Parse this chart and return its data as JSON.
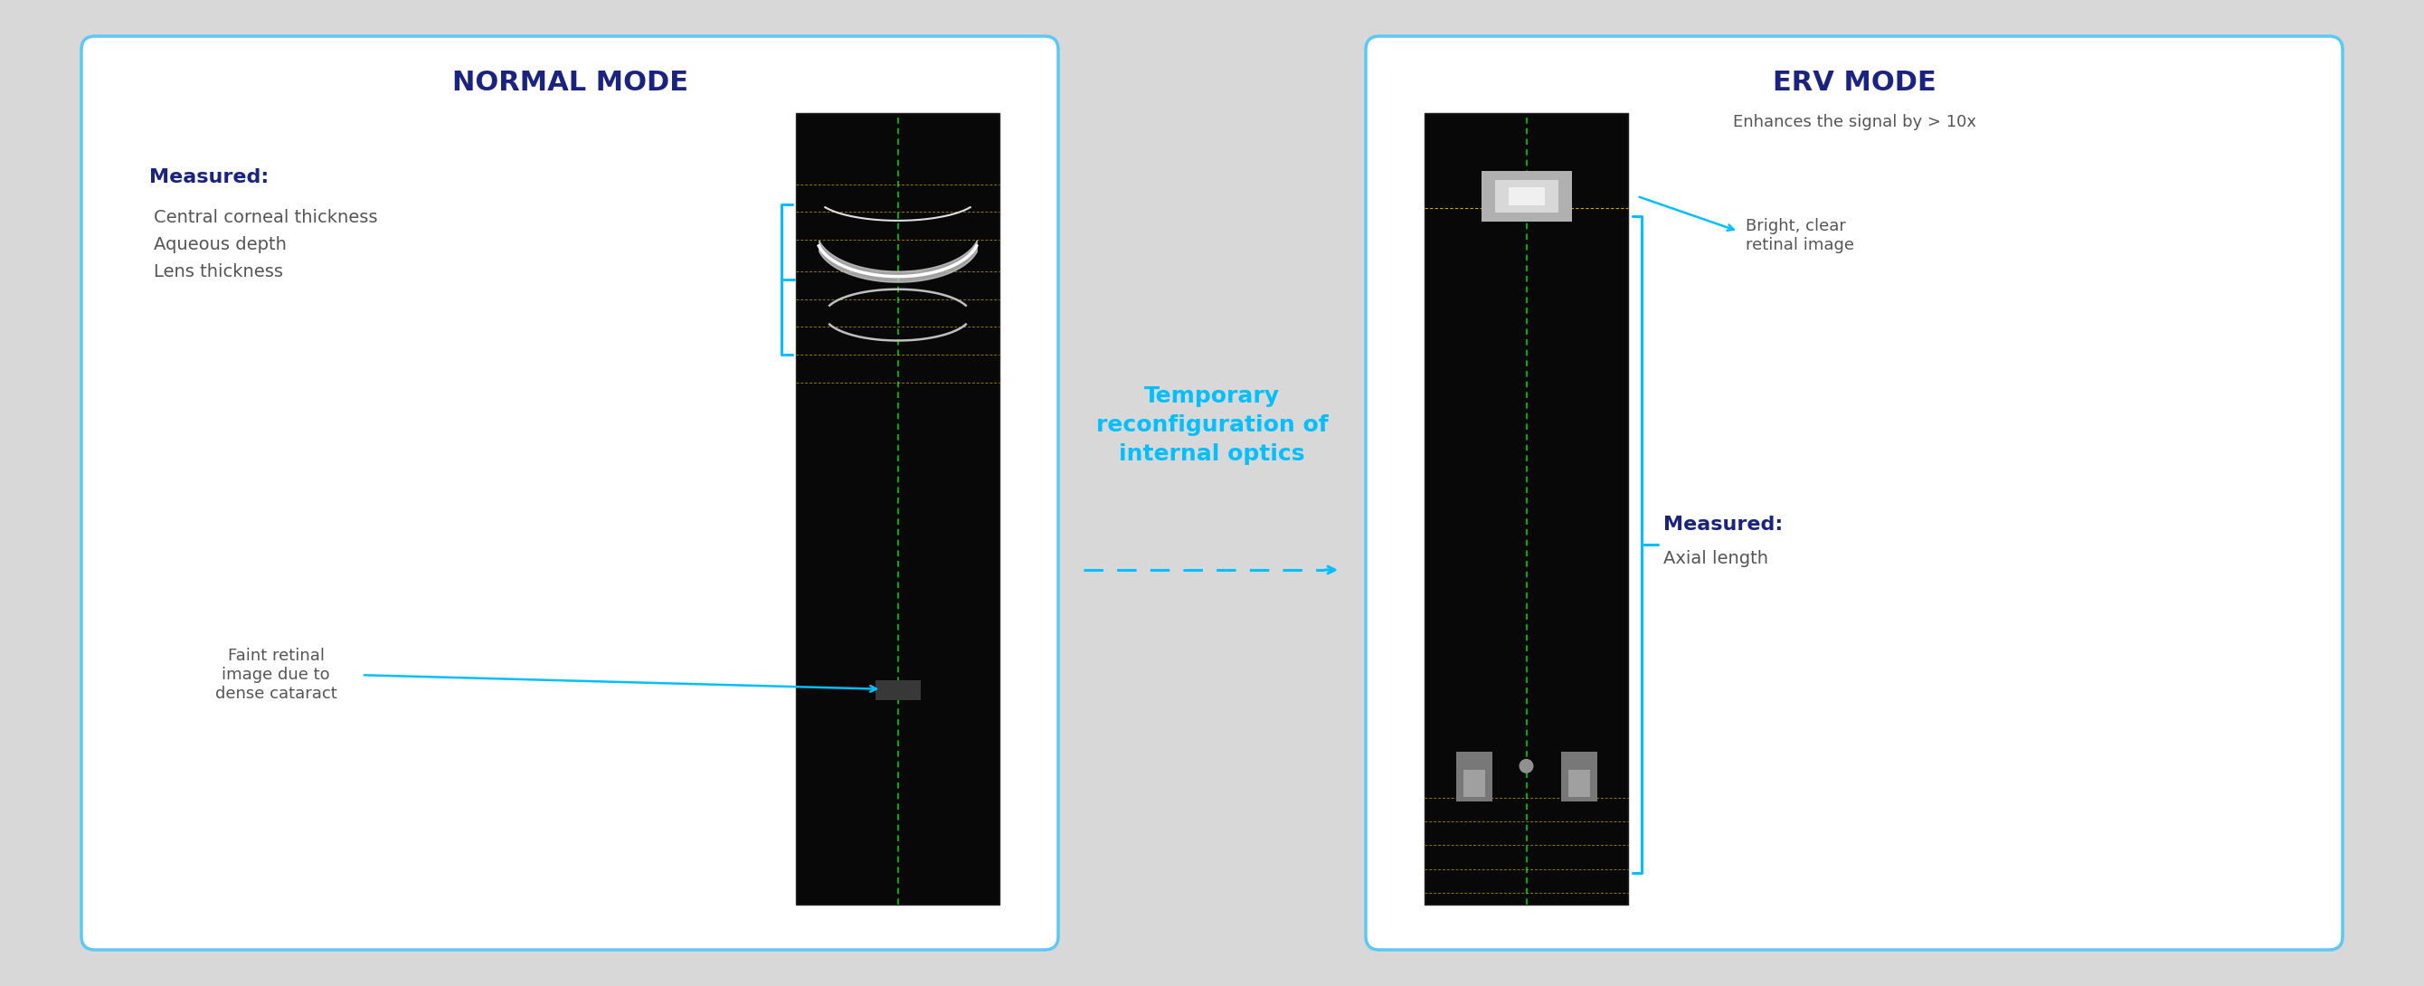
{
  "bg_color": "#ffffff",
  "outer_bg": "#d8d8d8",
  "panel_border_color": "#5bc8f5",
  "panel_border_lw": 2.5,
  "left_panel": {
    "title": "NORMAL MODE",
    "title_color": "#1a237e",
    "title_fontsize": 22,
    "measured_label": "Measured:",
    "measured_color": "#1a237e",
    "measured_fontsize": 16,
    "measured_items": [
      "Central corneal thickness",
      "Aqueous depth",
      "Lens thickness"
    ],
    "measured_items_color": "#555555",
    "measured_items_fontsize": 14,
    "faint_label": "Faint retinal\nimage due to\ndense cataract",
    "faint_label_color": "#555555",
    "faint_label_fontsize": 13
  },
  "right_panel": {
    "title": "ERV MODE",
    "title_color": "#1a237e",
    "title_fontsize": 22,
    "subtitle": "Enhances the signal by > 10x",
    "subtitle_color": "#555555",
    "subtitle_fontsize": 13,
    "bright_label": "Bright, clear\nretinal image",
    "bright_label_color": "#555555",
    "bright_label_fontsize": 13,
    "measured_label": "Measured:",
    "measured_color": "#1a237e",
    "measured_fontsize": 16,
    "measured_items": [
      "Axial length"
    ],
    "measured_items_color": "#555555",
    "measured_items_fontsize": 14
  },
  "middle": {
    "arrow_text": "Temporary\nreconfiguration of\ninternal optics",
    "arrow_text_color": "#00bfff",
    "arrow_text_fontsize": 18,
    "arrow_color": "#00bfff",
    "arrow_lw": 2.0
  },
  "annotation_arrow_color": "#00bfff",
  "bracket_color": "#00bfff"
}
